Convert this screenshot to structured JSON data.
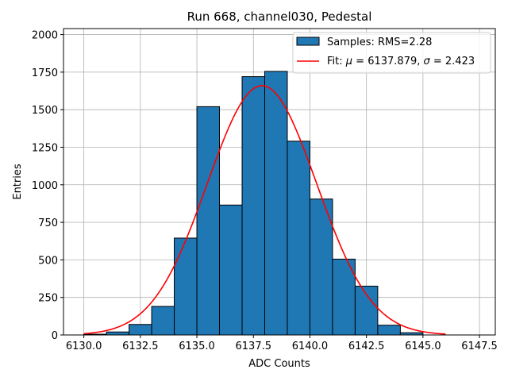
{
  "chart_data": {
    "type": "bar",
    "title": "Run 668, channel030, Pedestal",
    "xlabel": "ADC Counts",
    "ylabel": "Entries",
    "xlim": [
      6129.1,
      6148.2
    ],
    "ylim": [
      0,
      2040
    ],
    "xticks": [
      6130.0,
      6132.5,
      6135.0,
      6137.5,
      6140.0,
      6142.5,
      6145.0,
      6147.5
    ],
    "xtick_labels": [
      "6130.0",
      "6132.5",
      "6135.0",
      "6137.5",
      "6140.0",
      "6142.5",
      "6145.0",
      "6147.5"
    ],
    "yticks": [
      0,
      250,
      500,
      750,
      1000,
      1250,
      1500,
      1750,
      2000
    ],
    "ytick_labels": [
      "0",
      "250",
      "500",
      "750",
      "1000",
      "1250",
      "1500",
      "1750",
      "2000"
    ],
    "grid": true,
    "bin_edges": [
      6130,
      6131,
      6132,
      6133,
      6134,
      6135,
      6136,
      6137,
      6138,
      6139,
      6140,
      6141,
      6142,
      6143,
      6144,
      6145,
      6146
    ],
    "counts": [
      5,
      20,
      70,
      190,
      645,
      1520,
      865,
      1720,
      1755,
      1290,
      905,
      505,
      325,
      65,
      15,
      0
    ],
    "bar_color": "#1f77b4",
    "bar_edge_color": "#000000",
    "fit": {
      "mu": 6137.879,
      "sigma": 2.423,
      "amplitude": 1660,
      "x_range": [
        6130,
        6146
      ],
      "color": "#ff0000"
    },
    "legend": {
      "placement": "upper-right",
      "entries": [
        {
          "label": "Samples: RMS=2.28",
          "kind": "patch"
        },
        {
          "label_prefix": "Fit: ",
          "mu_symbol": "μ",
          "mu_text": " = 6137.879, ",
          "sigma_symbol": "σ",
          "sigma_text": " = 2.423",
          "kind": "line"
        }
      ]
    }
  }
}
